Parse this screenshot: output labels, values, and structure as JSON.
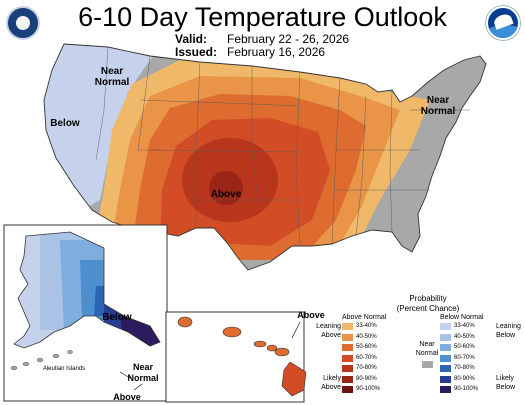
{
  "header": {
    "title": "6-10 Day Temperature Outlook",
    "valid_label": "Valid:",
    "valid_value": "February 22 - 26, 2026",
    "issued_label": "Issued:",
    "issued_value": "February 16, 2026"
  },
  "logos": {
    "left": "doc-seal-icon",
    "right": "noaa-logo-icon"
  },
  "map_labels": {
    "near_normal_west": "Near\nNormal",
    "below_west": "Below",
    "near_normal_east": "Near\nNormal",
    "above_center": "Above",
    "below_alaska": "Below",
    "aleutian": "Aleutian Islands",
    "near_normal_alaska": "Near\nNormal",
    "above_alaska": "Above",
    "above_hawaii": "Above"
  },
  "legend": {
    "title": "Probability",
    "subtitle": "(Percent Chance)",
    "above_header": "Above Normal",
    "below_header": "Below Normal",
    "near_label": "Near\nNormal",
    "leaning_above": "Leaning\nAbove",
    "likely_above": "Likely\nAbove",
    "leaning_below": "Leaning\nBelow",
    "likely_below": "Likely\nBelow",
    "ranges": [
      "33-40%",
      "40-50%",
      "50-60%",
      "60-70%",
      "70-80%",
      "80-90%",
      "90-100%"
    ],
    "above_colors": [
      "#f0b96a",
      "#e99446",
      "#de6b2f",
      "#d24d25",
      "#b8361c",
      "#9a2416",
      "#6d1410"
    ],
    "below_colors": [
      "#c6d2ec",
      "#a9c2e6",
      "#7eaede",
      "#4e8fce",
      "#2a66b3",
      "#273d93",
      "#2d1b5f"
    ],
    "near_color": "#a8a8a8"
  }
}
